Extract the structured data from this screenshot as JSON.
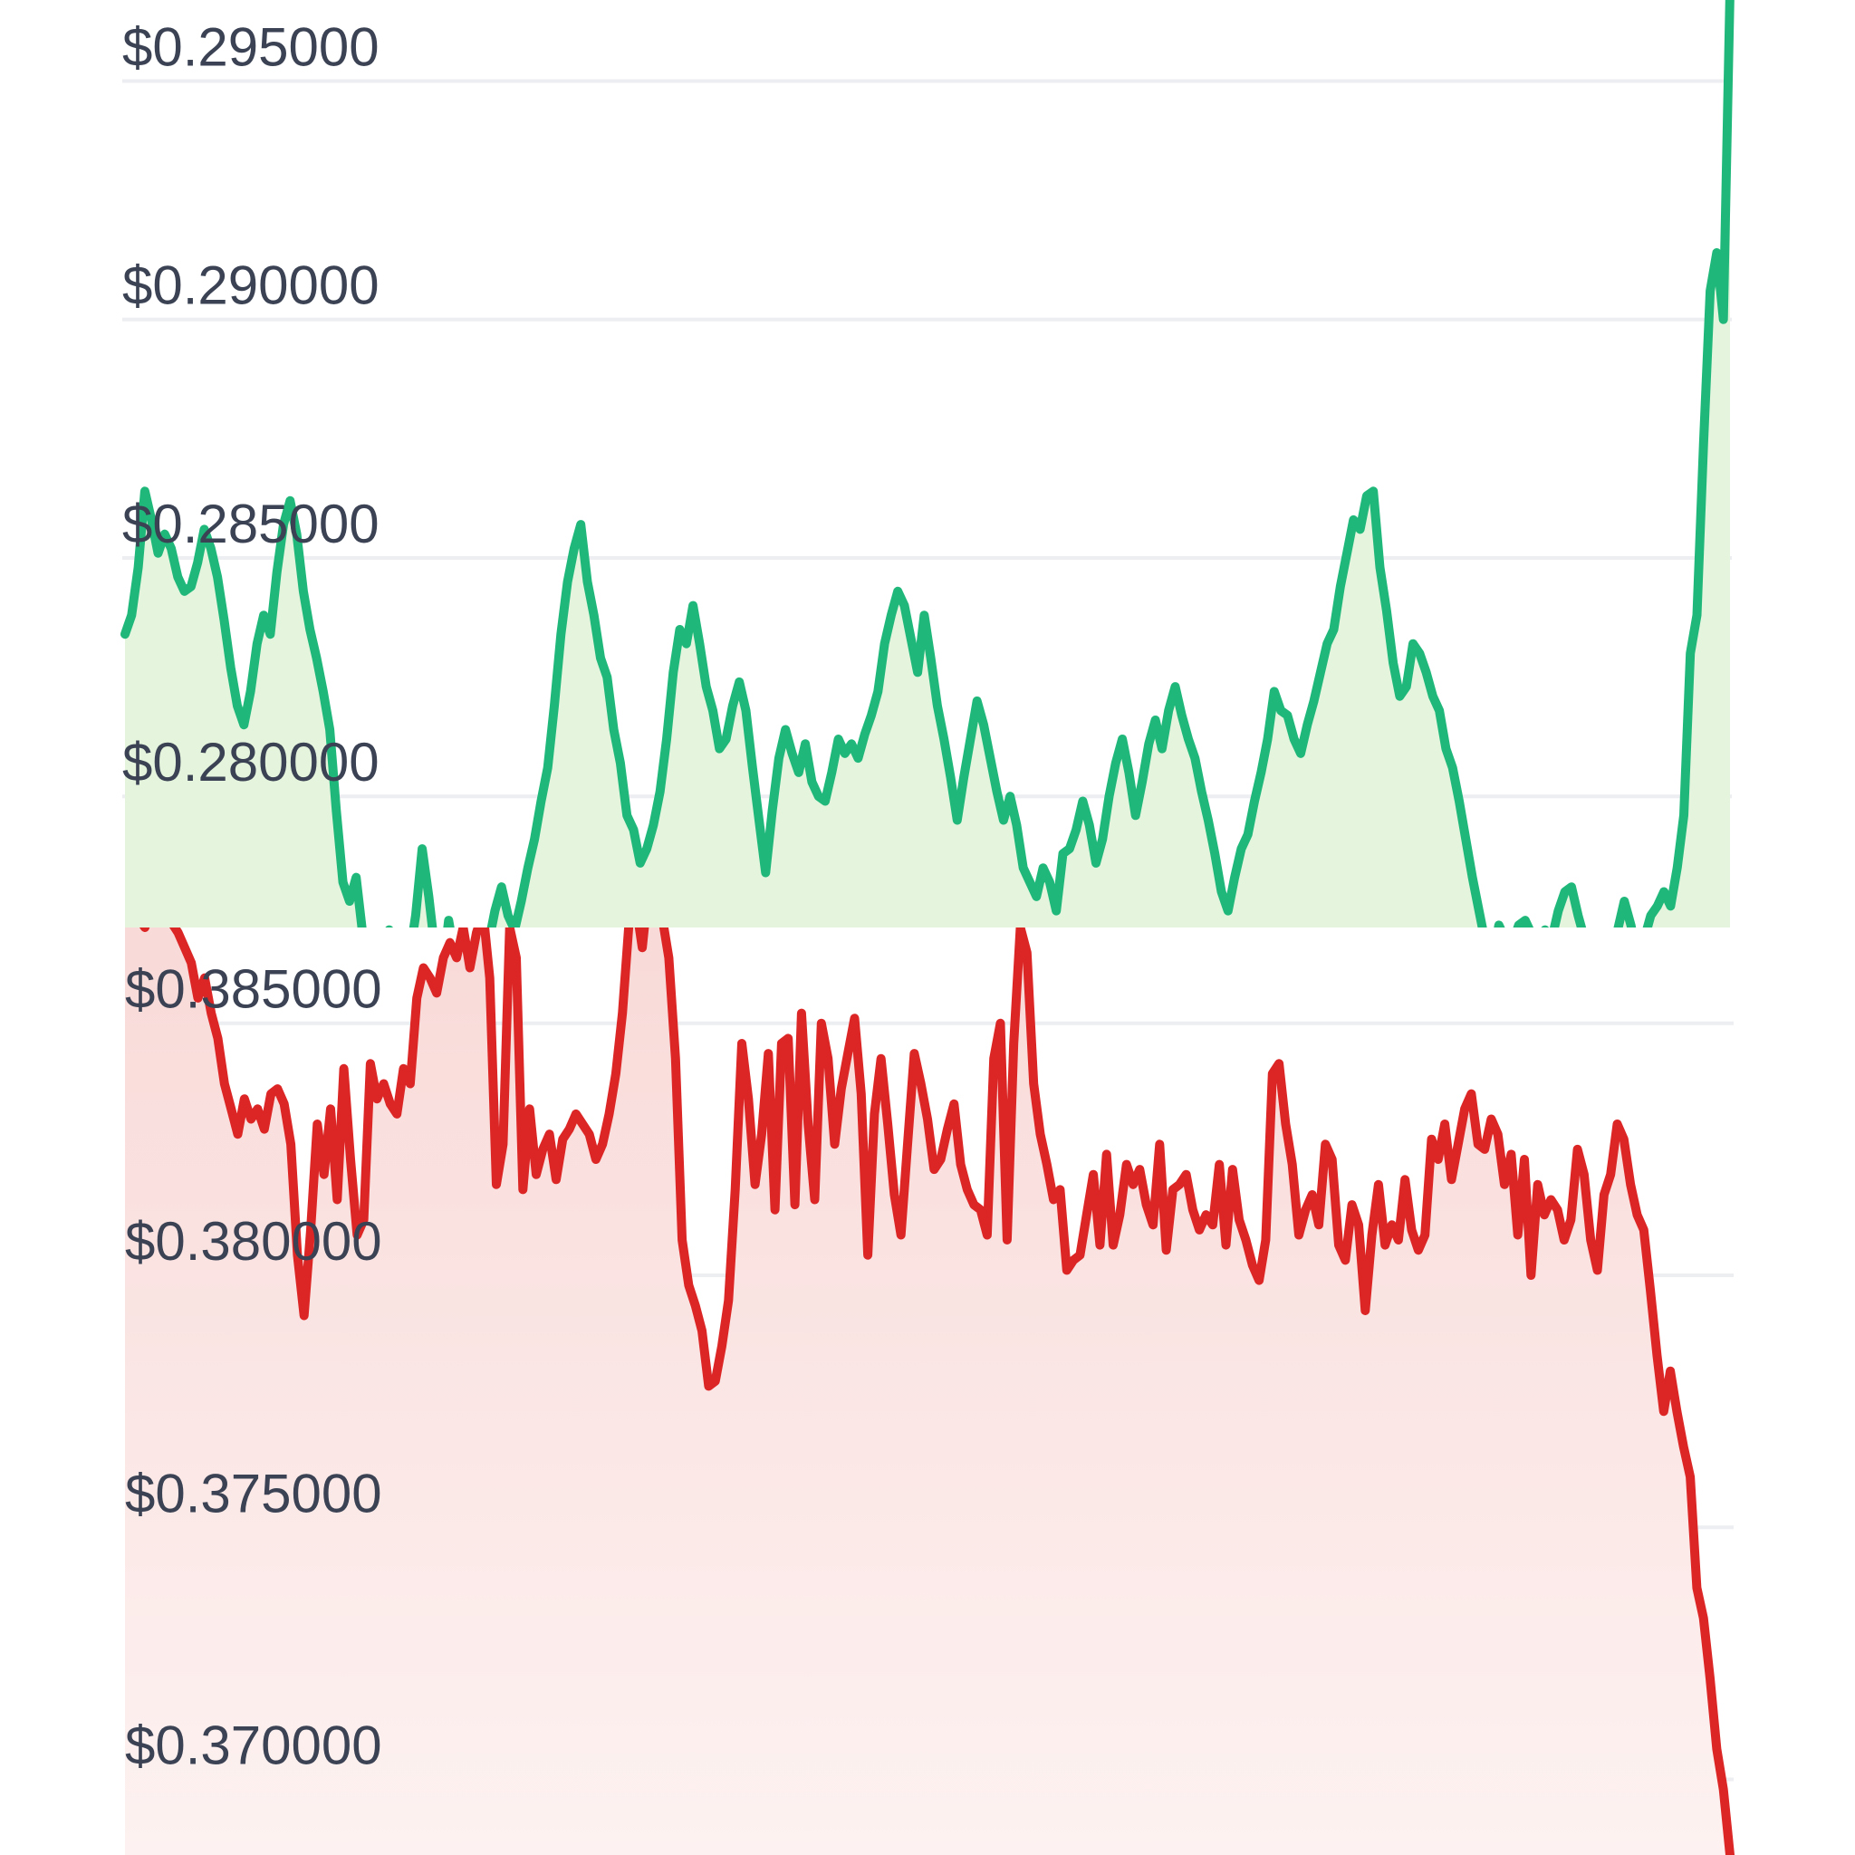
{
  "colors": {
    "up_line": "#1fb87a",
    "up_fill": "#e4f4dd",
    "down_line": "#dc2626",
    "down_fill": "#f9dcda",
    "tick_text": "#3a4253",
    "gridline": "#eceef1"
  },
  "chart_data": [
    {
      "type": "area",
      "title": "",
      "xlabel": "",
      "ylabel": "",
      "ylim": [
        0.27725,
        0.2967
      ],
      "y_ticks": [
        "$0.295000",
        "$0.290000",
        "$0.285000",
        "$0.280000"
      ],
      "y_tick_values": [
        0.295,
        0.29,
        0.285,
        0.28
      ],
      "grid": true,
      "color": "up_line",
      "series": [
        {
          "values": [
            0.2834,
            0.2838,
            0.2848,
            0.2864,
            0.2858,
            0.2851,
            0.2855,
            0.2852,
            0.2846,
            0.2843,
            0.2844,
            0.2849,
            0.2856,
            0.2852,
            0.2846,
            0.2837,
            0.2827,
            0.2819,
            0.2815,
            0.2822,
            0.2832,
            0.2838,
            0.2834,
            0.2847,
            0.2857,
            0.2862,
            0.2855,
            0.2843,
            0.2835,
            0.2829,
            0.2822,
            0.2814,
            0.2797,
            0.2782,
            0.2778,
            0.2783,
            0.2771,
            0.2765,
            0.2762,
            0.2768,
            0.2772,
            0.2768,
            0.2763,
            0.2766,
            0.2775,
            0.2789,
            0.2779,
            0.2767,
            0.2762,
            0.2774,
            0.2766,
            0.2762,
            0.2768,
            0.2758,
            0.2763,
            0.2769,
            0.2776,
            0.2781,
            0.2775,
            0.2772,
            0.2778,
            0.2785,
            0.2791,
            0.2799,
            0.2806,
            0.2819,
            0.2834,
            0.2845,
            0.2852,
            0.2857,
            0.2845,
            0.2838,
            0.2829,
            0.2825,
            0.2814,
            0.2807,
            0.2796,
            0.2793,
            0.2786,
            0.2789,
            0.2794,
            0.2801,
            0.2812,
            0.2826,
            0.2835,
            0.2832,
            0.284,
            0.2832,
            0.2823,
            0.2818,
            0.281,
            0.2812,
            0.2819,
            0.2824,
            0.2818,
            0.2806,
            0.2795,
            0.2784,
            0.2797,
            0.2808,
            0.2814,
            0.2809,
            0.2805,
            0.2811,
            0.2803,
            0.28,
            0.2799,
            0.2805,
            0.2812,
            0.2809,
            0.2811,
            0.2808,
            0.2813,
            0.2817,
            0.2822,
            0.2832,
            0.2838,
            0.2843,
            0.284,
            0.2833,
            0.2826,
            0.2838,
            0.2829,
            0.2819,
            0.2812,
            0.2804,
            0.2795,
            0.2804,
            0.2812,
            0.282,
            0.2815,
            0.2808,
            0.2801,
            0.2795,
            0.28,
            0.2794,
            0.2785,
            0.2782,
            0.2779,
            0.2785,
            0.2782,
            0.2776,
            0.2788,
            0.2789,
            0.2793,
            0.2799,
            0.2794,
            0.2786,
            0.2791,
            0.28,
            0.2807,
            0.2812,
            0.2805,
            0.2796,
            0.2803,
            0.2811,
            0.2816,
            0.281,
            0.2818,
            0.2823,
            0.2817,
            0.2812,
            0.2808,
            0.2801,
            0.2795,
            0.2788,
            0.278,
            0.2776,
            0.2783,
            0.2789,
            0.2792,
            0.2799,
            0.2805,
            0.2812,
            0.2822,
            0.2818,
            0.2817,
            0.2812,
            0.2809,
            0.2815,
            0.282,
            0.2826,
            0.2832,
            0.2835,
            0.2844,
            0.2851,
            0.2858,
            0.2856,
            0.2863,
            0.2864,
            0.2848,
            0.2839,
            0.2828,
            0.2821,
            0.2823,
            0.2832,
            0.283,
            0.2826,
            0.2821,
            0.2818,
            0.281,
            0.2806,
            0.2799,
            0.2791,
            0.2783,
            0.2776,
            0.2769,
            0.2765,
            0.2773,
            0.277,
            0.2769,
            0.2773,
            0.2774,
            0.2771,
            0.2766,
            0.2772,
            0.277,
            0.2776,
            0.278,
            0.2781,
            0.2775,
            0.277,
            0.2771,
            0.2768,
            0.2764,
            0.2771,
            0.2772,
            0.2778,
            0.2773,
            0.2766,
            0.277,
            0.2775,
            0.2777,
            0.278,
            0.2777,
            0.2785,
            0.2796,
            0.283,
            0.2838,
            0.2874,
            0.2906,
            0.2914,
            0.29,
            0.2969
          ]
        }
      ]
    },
    {
      "type": "area",
      "title": "",
      "xlabel": "",
      "ylabel": "",
      "ylim": [
        0.3685,
        0.3869
      ],
      "y_ticks": [
        "$0.385000",
        "$0.380000",
        "$0.375000",
        "$0.370000"
      ],
      "y_tick_values": [
        0.385,
        0.38,
        0.375,
        0.37
      ],
      "grid": true,
      "color": "down_line",
      "series": [
        {
          "values": [
            0.3874,
            0.3876,
            0.3871,
            0.3869,
            0.3873,
            0.3878,
            0.3872,
            0.387,
            0.3868,
            0.3865,
            0.3862,
            0.3855,
            0.3859,
            0.3852,
            0.3847,
            0.3838,
            0.3833,
            0.3828,
            0.3835,
            0.3831,
            0.3833,
            0.3829,
            0.3836,
            0.3837,
            0.3834,
            0.3826,
            0.3804,
            0.3792,
            0.3809,
            0.383,
            0.382,
            0.3833,
            0.3815,
            0.3841,
            0.3823,
            0.3808,
            0.3811,
            0.3842,
            0.3835,
            0.3838,
            0.3834,
            0.3832,
            0.3841,
            0.3838,
            0.3855,
            0.3861,
            0.3859,
            0.3856,
            0.3863,
            0.3866,
            0.3863,
            0.3869,
            0.3861,
            0.3868,
            0.3872,
            0.3859,
            0.3818,
            0.3826,
            0.3869,
            0.3863,
            0.3817,
            0.3833,
            0.382,
            0.3825,
            0.3828,
            0.3819,
            0.3827,
            0.3829,
            0.3832,
            0.383,
            0.3828,
            0.3823,
            0.3826,
            0.3832,
            0.384,
            0.3852,
            0.387,
            0.3874,
            0.3865,
            0.3878,
            0.387,
            0.3871,
            0.3863,
            0.3843,
            0.3807,
            0.3798,
            0.3794,
            0.3789,
            0.3778,
            0.3779,
            0.3786,
            0.3795,
            0.3817,
            0.3846,
            0.3835,
            0.3818,
            0.3828,
            0.3844,
            0.3813,
            0.3846,
            0.3847,
            0.3814,
            0.3852,
            0.383,
            0.3815,
            0.385,
            0.3843,
            0.3826,
            0.3837,
            0.3844,
            0.3851,
            0.3836,
            0.3804,
            0.3832,
            0.3843,
            0.383,
            0.3816,
            0.3808,
            0.3826,
            0.3844,
            0.3838,
            0.3831,
            0.3821,
            0.3823,
            0.3829,
            0.3834,
            0.3822,
            0.3817,
            0.3814,
            0.3813,
            0.3808,
            0.3843,
            0.385,
            0.3807,
            0.3846,
            0.3869,
            0.3864,
            0.3838,
            0.3828,
            0.3822,
            0.3815,
            0.3817,
            0.3801,
            0.3803,
            0.3804,
            0.3812,
            0.382,
            0.3806,
            0.3824,
            0.3806,
            0.3812,
            0.3822,
            0.3818,
            0.3821,
            0.3814,
            0.381,
            0.3826,
            0.3805,
            0.3817,
            0.3818,
            0.382,
            0.3813,
            0.3809,
            0.3812,
            0.381,
            0.3822,
            0.3806,
            0.3821,
            0.3811,
            0.3807,
            0.3802,
            0.3799,
            0.3807,
            0.384,
            0.3842,
            0.383,
            0.3822,
            0.3808,
            0.3813,
            0.3816,
            0.381,
            0.3826,
            0.3823,
            0.3806,
            0.3803,
            0.3814,
            0.381,
            0.3793,
            0.3808,
            0.3818,
            0.3806,
            0.381,
            0.3807,
            0.3819,
            0.3809,
            0.3805,
            0.3808,
            0.3827,
            0.3823,
            0.383,
            0.3819,
            0.3826,
            0.3833,
            0.3836,
            0.3826,
            0.3825,
            0.3831,
            0.3828,
            0.3818,
            0.3824,
            0.3808,
            0.3823,
            0.38,
            0.3818,
            0.3812,
            0.3815,
            0.3813,
            0.3807,
            0.3811,
            0.3825,
            0.382,
            0.3807,
            0.3801,
            0.3816,
            0.382,
            0.383,
            0.3827,
            0.3818,
            0.3812,
            0.3809,
            0.3797,
            0.3784,
            0.3773,
            0.3781,
            0.3773,
            0.3766,
            0.376,
            0.3738,
            0.3732,
            0.372,
            0.3706,
            0.3698,
            0.3685
          ]
        }
      ]
    }
  ]
}
